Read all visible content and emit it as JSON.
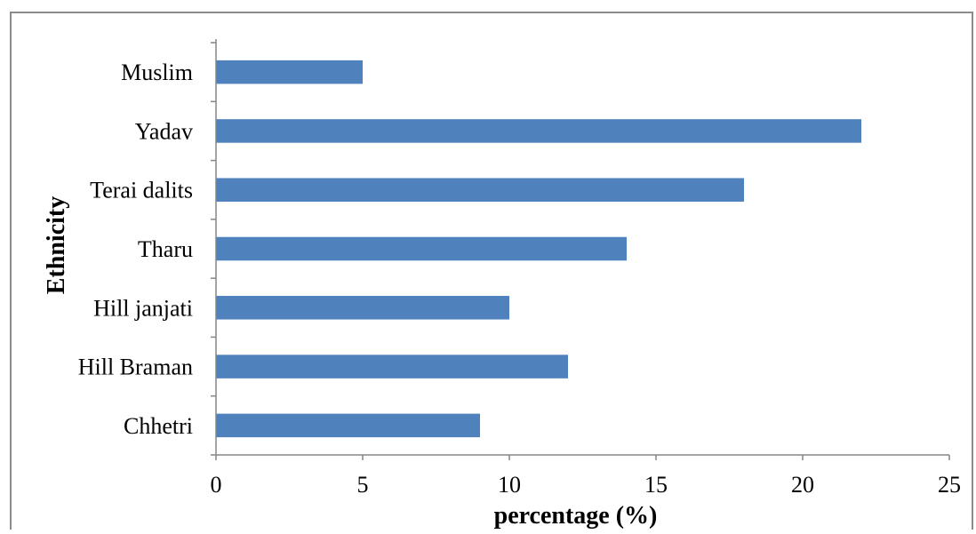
{
  "chart_data": {
    "type": "bar",
    "orientation": "horizontal",
    "categories": [
      "Muslim",
      "Yadav",
      "Terai dalits",
      "Tharu",
      "Hill janjati",
      "Hill Braman",
      "Chhetri"
    ],
    "values": [
      5,
      22,
      18,
      14,
      10,
      12,
      9
    ],
    "xlabel": "percentage (%)",
    "ylabel": "Ethnicity",
    "xlim": [
      0,
      25
    ],
    "xticks": [
      0,
      5,
      10,
      15,
      20,
      25
    ],
    "grid": false,
    "legend": "none",
    "bar_color": "#4f81bd"
  }
}
